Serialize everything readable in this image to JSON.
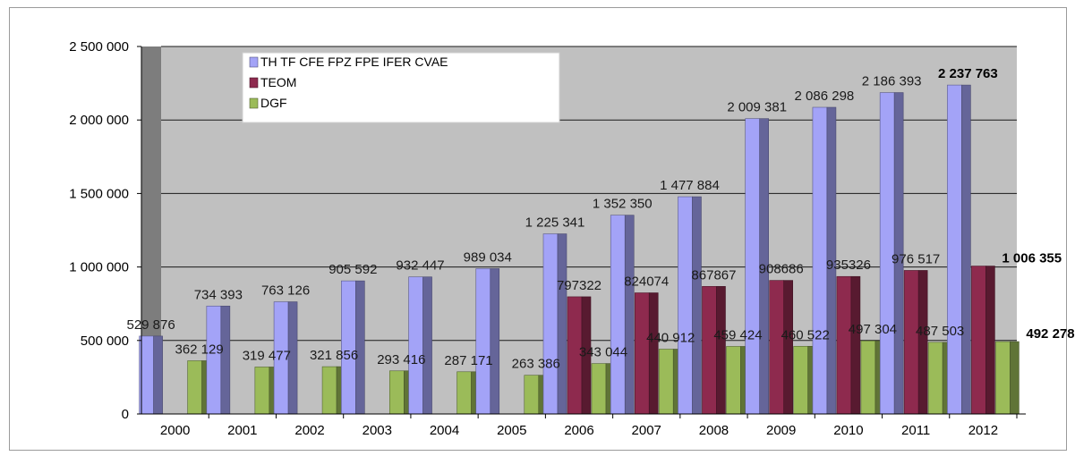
{
  "chart_data": {
    "type": "bar",
    "title": "",
    "xlabel": "",
    "ylabel": "",
    "ylim": [
      0,
      2500000
    ],
    "y_ticks": [
      {
        "value": 0,
        "label": "0"
      },
      {
        "value": 500000,
        "label": "500 000"
      },
      {
        "value": 1000000,
        "label": "1 000 000"
      },
      {
        "value": 1500000,
        "label": "1 500 000"
      },
      {
        "value": 2000000,
        "label": "2 000 000"
      },
      {
        "value": 2500000,
        "label": "2 500 000"
      }
    ],
    "grid": true,
    "legend_position": "top-left",
    "categories": [
      "2000",
      "2001",
      "2002",
      "2003",
      "2004",
      "2005",
      "2006",
      "2007",
      "2008",
      "2009",
      "2010",
      "2011",
      "2012"
    ],
    "series": [
      {
        "name": "TH TF CFE FPZ FPE IFER CVAE",
        "color": "#a3a3f7",
        "values": [
          529876,
          734393,
          763126,
          905592,
          932447,
          989034,
          1225341,
          1352350,
          1477884,
          2009381,
          2086298,
          2186393,
          2237763
        ],
        "labels": [
          "529 876",
          "734 393",
          "763 126",
          "905 592",
          "932 447",
          "989 034",
          "1 225 341",
          "1 352 350",
          "1 477 884",
          "2 009 381",
          "2 086 298",
          "2 186 393",
          "2 237 763"
        ]
      },
      {
        "name": "TEOM",
        "color": "#8e2a4e",
        "values": [
          null,
          null,
          null,
          null,
          null,
          null,
          797322,
          824074,
          867867,
          908686,
          935326,
          976517,
          1006355
        ],
        "labels": [
          "",
          "",
          "",
          "",
          "",
          "",
          "797322",
          "824074",
          "867867",
          "908686",
          "935326",
          "976 517",
          "1 006 355"
        ]
      },
      {
        "name": "DGF",
        "color": "#9bbb59",
        "values": [
          362129,
          319477,
          321856,
          293416,
          287171,
          263386,
          343044,
          440912,
          459424,
          460522,
          497304,
          487503,
          492278
        ],
        "labels": [
          "362 129",
          "319 477",
          "321 856",
          "293 416",
          "287 171",
          "263 386",
          "343 044",
          "440 912",
          "459 424",
          "460 522",
          "497 304",
          "487 503",
          "492 278"
        ]
      }
    ]
  }
}
